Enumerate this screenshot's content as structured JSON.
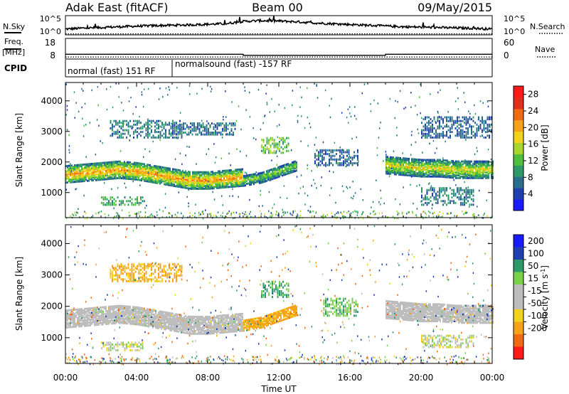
{
  "header": {
    "station": "Adak East (fitACF)",
    "beam": "Beam 00",
    "date": "09/May/2015"
  },
  "side_labels": {
    "nsky": "N.Sky",
    "nsearch": "N.Search",
    "freq_line1": "Freq.",
    "freq_line2": "[MHz]",
    "nave": "Nave",
    "cpid": "CPID",
    "noise_left_ticks": [
      "10^5",
      "10^0"
    ],
    "noise_right_ticks": [
      "10^5",
      "10^0"
    ],
    "freq_left_ticks": [
      "18",
      "8"
    ],
    "nave_right_ticks": [
      "60",
      "0"
    ]
  },
  "cpid_segments": [
    {
      "label": "normal (fast) 151 RF",
      "start_hour": 0,
      "end_hour": 6
    },
    {
      "label": "normalsound (fast) -157 RF",
      "start_hour": 6,
      "end_hour": 24
    }
  ],
  "colors": {
    "power_scale": [
      "#1a1aff",
      "#1f3fb0",
      "#2a6e8c",
      "#2e9a6a",
      "#4fbf3f",
      "#a9d62a",
      "#f2d21a",
      "#f5a41a",
      "#f06a14",
      "#e0301c",
      "#ff1a1a"
    ],
    "velocity_scale": [
      "#ff1a1a",
      "#f06a14",
      "#f5a41a",
      "#f2d21a",
      "#bdbdbd",
      "#bdbdbd",
      "#7ad14a",
      "#2e9a6a",
      "#1f3fb0",
      "#1a1aff"
    ],
    "ground_scatter": "#bdbdbd"
  },
  "chart_data": [
    {
      "type": "line",
      "panel": "noise",
      "series": [
        {
          "name": "N.Sky",
          "x": [
            0,
            1,
            2,
            3,
            4,
            5,
            6,
            7,
            8,
            9,
            10,
            11,
            12,
            13,
            14,
            15,
            16,
            17,
            18,
            19,
            20,
            21,
            22,
            23,
            24
          ],
          "y_fraction": [
            0.3,
            0.35,
            0.38,
            0.42,
            0.45,
            0.48,
            0.5,
            0.52,
            0.55,
            0.58,
            0.7,
            0.74,
            0.72,
            0.68,
            0.62,
            0.58,
            0.54,
            0.5,
            0.46,
            0.42,
            0.4,
            0.38,
            0.36,
            0.34,
            0.3
          ]
        },
        {
          "name": "N.Search",
          "x": [
            0,
            24
          ],
          "y_fraction": [
            0.05,
            0.05
          ]
        }
      ]
    },
    {
      "type": "line",
      "panel": "frequency",
      "series": [
        {
          "name": "Freq.",
          "x": [
            0,
            10,
            10,
            18,
            18,
            24
          ],
          "y": [
            10.3,
            10.3,
            9.8,
            9.8,
            10.3,
            10.3
          ]
        },
        {
          "name": "Nave",
          "x": [
            0,
            24
          ],
          "y": [
            6,
            6
          ]
        }
      ]
    },
    {
      "type": "heatmap",
      "title": "Power [dB]",
      "xlabel": "Time UT",
      "ylabel": "Slant Range [km]",
      "xlim": [
        0,
        24
      ],
      "ylim": [
        180,
        4600
      ],
      "x_ticks": [
        "00:00",
        "04:00",
        "08:00",
        "12:00",
        "16:00",
        "20:00",
        "00:00"
      ],
      "y_ticks": [
        1000,
        2000,
        3000,
        4000
      ],
      "colorbar_label": "Power [dB]",
      "colorbar_ticks": [
        4,
        8,
        12,
        16,
        20,
        24,
        28
      ],
      "colorbar_range": [
        0,
        30
      ],
      "features": [
        {
          "kind": "band",
          "t0": 0,
          "t1": 10,
          "r_center": [
            1600,
            1650,
            1700,
            1750,
            1700,
            1600,
            1500,
            1400,
            1400,
            1450,
            1500
          ],
          "width": 550,
          "peak_db": 22
        },
        {
          "kind": "band",
          "t0": 10,
          "t1": 13,
          "r_center": [
            1400,
            1500,
            1700,
            1900
          ],
          "width": 350,
          "peak_db": 14
        },
        {
          "kind": "band",
          "t0": 18,
          "t1": 24,
          "r_center": [
            1900,
            1850,
            1800,
            1800,
            1750,
            1750,
            1750
          ],
          "width": 550,
          "peak_db": 18
        },
        {
          "kind": "patch",
          "t0": 2.5,
          "t1": 6.5,
          "r0": 2800,
          "r1": 3400,
          "db": 7
        },
        {
          "kind": "patch",
          "t0": 6,
          "t1": 9.5,
          "r0": 2900,
          "r1": 3300,
          "db": 6
        },
        {
          "kind": "patch",
          "t0": 11,
          "t1": 12.5,
          "r0": 2300,
          "r1": 2800,
          "db": 12
        },
        {
          "kind": "patch",
          "t0": 14,
          "t1": 16.5,
          "r0": 1900,
          "r1": 2400,
          "db": 5
        },
        {
          "kind": "patch",
          "t0": 2,
          "t1": 4.5,
          "r0": 600,
          "r1": 900,
          "db": 10
        },
        {
          "kind": "patch",
          "t0": 20,
          "t1": 23,
          "r0": 600,
          "r1": 1200,
          "db": 7
        },
        {
          "kind": "patch",
          "t0": 20,
          "t1": 24,
          "r0": 2800,
          "r1": 3500,
          "db": 5
        }
      ]
    },
    {
      "type": "heatmap",
      "title": "Velocity [m s^-1]",
      "xlabel": "Time UT",
      "ylabel": "Slant Range [km]",
      "xlim": [
        0,
        24
      ],
      "ylim": [
        180,
        4600
      ],
      "x_ticks": [
        "00:00",
        "04:00",
        "08:00",
        "12:00",
        "16:00",
        "20:00",
        "00:00"
      ],
      "y_ticks": [
        1000,
        2000,
        3000,
        4000
      ],
      "colorbar_label": "Velocity [m s^-1]",
      "colorbar_ticks": [
        "200",
        "100",
        "50",
        "15",
        "-15",
        "-50",
        "-100",
        "-200"
      ],
      "features": [
        {
          "kind": "band",
          "t0": 0,
          "t1": 10,
          "r_center": [
            1600,
            1650,
            1700,
            1750,
            1700,
            1600,
            1500,
            1400,
            1400,
            1450,
            1500
          ],
          "width": 550,
          "vel": 0
        },
        {
          "kind": "band",
          "t0": 10,
          "t1": 13,
          "r_center": [
            1400,
            1500,
            1700,
            1900
          ],
          "width": 350,
          "vel": -60
        },
        {
          "kind": "band",
          "t0": 18,
          "t1": 24,
          "r_center": [
            1900,
            1850,
            1800,
            1800,
            1750,
            1750,
            1750
          ],
          "width": 550,
          "vel": 0
        },
        {
          "kind": "patch",
          "t0": 2.5,
          "t1": 6.5,
          "r0": 2800,
          "r1": 3400,
          "vel": -60
        },
        {
          "kind": "patch",
          "t0": 11,
          "t1": 12.5,
          "r0": 2300,
          "r1": 2800,
          "vel": 60
        },
        {
          "kind": "patch",
          "t0": 14.5,
          "t1": 16.5,
          "r0": 1700,
          "r1": 2300,
          "vel": 40
        },
        {
          "kind": "patch",
          "t0": 2,
          "t1": 4.5,
          "r0": 600,
          "r1": 900,
          "vel": 0
        },
        {
          "kind": "patch",
          "t0": 20,
          "t1": 23,
          "r0": 700,
          "r1": 1100,
          "vel": 0
        }
      ]
    }
  ]
}
